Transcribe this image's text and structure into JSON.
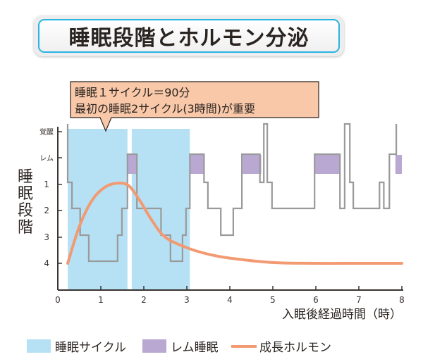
{
  "chart_data": {
    "type": "line",
    "title": "睡眠段階とホルモン分泌",
    "annotation": [
      "睡眠１サイクル＝90分",
      "最初の睡眠2サイクル(3時間)が重要"
    ],
    "xlabel": "入眠後経過時間（時）",
    "ylabel": "睡眠段階",
    "xlim": [
      0,
      8
    ],
    "x_ticks": [
      "0",
      "1",
      "2",
      "3",
      "4",
      "5",
      "6",
      "7",
      "8"
    ],
    "y_levels": [
      "覚醒",
      "レム",
      "1",
      "2",
      "3",
      "4"
    ],
    "grid": false,
    "legend_position": "bottom",
    "legend": [
      {
        "label": "睡眠サイクル",
        "kind": "box",
        "color": "#b6e1f5"
      },
      {
        "label": "レム睡眠",
        "kind": "box",
        "color": "#b9a8d2"
      },
      {
        "label": "成長ホルモン",
        "kind": "line",
        "color": "#f29a72"
      }
    ],
    "sleep_cycles": [
      {
        "start": 0.23,
        "end": 1.62
      },
      {
        "start": 1.72,
        "end": 3.07
      }
    ],
    "rem_periods": [
      {
        "start": 1.62,
        "end": 1.84
      },
      {
        "start": 3.07,
        "end": 3.4
      },
      {
        "start": 4.3,
        "end": 4.73
      },
      {
        "start": 5.97,
        "end": 6.57
      },
      {
        "start": 7.85,
        "end": 8.0
      }
    ],
    "hypnogram": {
      "name": "睡眠段階",
      "color": "#9a9a9a",
      "points": [
        [
          0.23,
          "覚醒"
        ],
        [
          0.23,
          "1"
        ],
        [
          0.33,
          "1"
        ],
        [
          0.33,
          "2"
        ],
        [
          0.52,
          "2"
        ],
        [
          0.52,
          "3"
        ],
        [
          0.72,
          "3"
        ],
        [
          0.72,
          "4"
        ],
        [
          1.39,
          "4"
        ],
        [
          1.39,
          "3"
        ],
        [
          1.49,
          "3"
        ],
        [
          1.49,
          "2"
        ],
        [
          1.62,
          "2"
        ],
        [
          1.62,
          "レム"
        ],
        [
          1.84,
          "レム"
        ],
        [
          1.84,
          "2"
        ],
        [
          2.4,
          "2"
        ],
        [
          2.4,
          "3"
        ],
        [
          2.62,
          "3"
        ],
        [
          2.62,
          "4"
        ],
        [
          2.9,
          "4"
        ],
        [
          2.9,
          "3"
        ],
        [
          2.98,
          "3"
        ],
        [
          2.98,
          "2"
        ],
        [
          3.07,
          "2"
        ],
        [
          3.07,
          "レム"
        ],
        [
          3.4,
          "レム"
        ],
        [
          3.4,
          "1"
        ],
        [
          3.49,
          "1"
        ],
        [
          3.49,
          "2"
        ],
        [
          3.79,
          "2"
        ],
        [
          3.79,
          "3"
        ],
        [
          4.08,
          "3"
        ],
        [
          4.08,
          "2"
        ],
        [
          4.28,
          "2"
        ],
        [
          4.28,
          "レム"
        ],
        [
          4.7,
          "レム"
        ],
        [
          4.7,
          "1"
        ],
        [
          4.79,
          "1"
        ],
        [
          4.79,
          "覚醒"
        ],
        [
          4.87,
          "覚醒"
        ],
        [
          4.87,
          "1"
        ],
        [
          4.98,
          "1"
        ],
        [
          4.98,
          "2"
        ],
        [
          5.97,
          "2"
        ],
        [
          5.97,
          "レム"
        ],
        [
          6.56,
          "レム"
        ],
        [
          6.56,
          "2"
        ],
        [
          6.67,
          "2"
        ],
        [
          6.67,
          "覚醒"
        ],
        [
          6.79,
          "覚醒"
        ],
        [
          6.79,
          "1"
        ],
        [
          6.87,
          "1"
        ],
        [
          6.87,
          "2"
        ],
        [
          7.48,
          "2"
        ],
        [
          7.48,
          "1"
        ],
        [
          7.58,
          "1"
        ],
        [
          7.58,
          "2"
        ],
        [
          7.71,
          "2"
        ],
        [
          7.71,
          "レム"
        ],
        [
          7.87,
          "レム"
        ],
        [
          7.87,
          "覚醒"
        ]
      ]
    },
    "growth_hormone": {
      "name": "成長ホルモン",
      "color": "#f29a72",
      "unit": "relative level (same scale as sleep stage axis, 4 = low, レム = high)",
      "points": [
        [
          0.23,
          "4.4"
        ],
        [
          0.5,
          "2.6"
        ],
        [
          0.8,
          "1.6"
        ],
        [
          1.1,
          "1.1"
        ],
        [
          1.4,
          "0.95"
        ],
        [
          1.65,
          "1.05"
        ],
        [
          1.9,
          "1.6"
        ],
        [
          2.2,
          "2.4"
        ],
        [
          2.5,
          "3.0"
        ],
        [
          3.0,
          "3.4"
        ],
        [
          3.5,
          "3.65"
        ],
        [
          4.0,
          "3.8"
        ],
        [
          5.0,
          "3.97"
        ],
        [
          6.0,
          "4.07"
        ],
        [
          7.0,
          "4.15"
        ],
        [
          8.0,
          "4.2"
        ]
      ]
    }
  }
}
